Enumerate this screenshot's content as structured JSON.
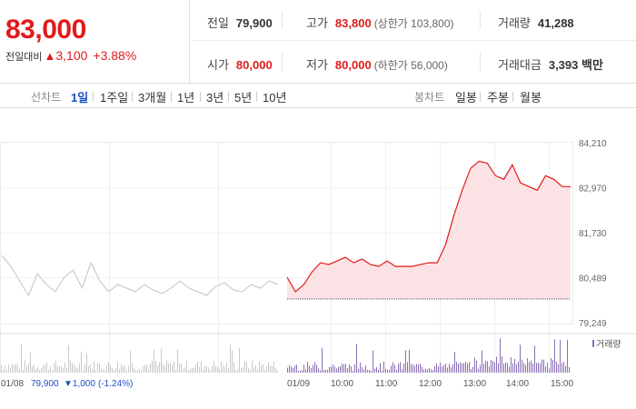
{
  "summary": {
    "price": "83,000",
    "change_label": "전일대비",
    "change_arrow": "▲",
    "change_value": "3,100",
    "change_pct": "+3.88%"
  },
  "stats": {
    "prev_close_label": "전일",
    "prev_close": "79,900",
    "high_label": "고가",
    "high": "83,800",
    "upper_limit": "(상한가 103,800)",
    "volume_label": "거래량",
    "volume": "41,288",
    "open_label": "시가",
    "open": "80,000",
    "low_label": "저가",
    "low": "80,000",
    "lower_limit": "(하한가 56,000)",
    "amount_label": "거래대금",
    "amount": "3,393 백만"
  },
  "line_tabs": {
    "label": "선차트",
    "items": [
      "1일",
      "1주일",
      "3개월",
      "1년",
      "3년",
      "5년",
      "10년"
    ],
    "active": 0
  },
  "candle_tabs": {
    "label": "봉차트",
    "items": [
      "일봉",
      "주봉",
      "월봉"
    ]
  },
  "colors": {
    "up": "#e01b1b",
    "down": "#1a4fc4",
    "volume_bar": "#8b6fb5",
    "prev_line": "#c3c3c3",
    "fill": "#fbe3e5"
  },
  "chart_data": {
    "type": "line",
    "y_ticks": [
      "84,210",
      "82,970",
      "81,730",
      "80,489",
      "79,249"
    ],
    "ylim": [
      79249,
      84210
    ],
    "baseline": 79900,
    "x_ticks": [
      "01/09",
      "10:00",
      "11:00",
      "12:00",
      "13:00",
      "14:00",
      "15:00"
    ],
    "prev_day_summary": {
      "date": "01/08",
      "close": "79,900",
      "change": "▼1,000",
      "pct": "(-1.24%)"
    },
    "volume_legend": "거래량",
    "today_series": {
      "times": [
        "09:00",
        "09:05",
        "09:10",
        "09:20",
        "09:30",
        "09:45",
        "10:00",
        "10:15",
        "10:30",
        "10:45",
        "11:00",
        "11:15",
        "11:30",
        "11:45",
        "12:00",
        "12:15",
        "12:30",
        "12:45",
        "13:00",
        "13:05",
        "13:10",
        "13:15",
        "13:20",
        "13:30",
        "13:40",
        "13:50",
        "14:00",
        "14:10",
        "14:20",
        "14:30",
        "14:40",
        "14:50",
        "15:00",
        "15:10",
        "15:20"
      ],
      "values": [
        80500,
        80100,
        80300,
        80650,
        80900,
        80850,
        80950,
        81050,
        80900,
        81000,
        80850,
        80800,
        80950,
        80800,
        80800,
        80800,
        80850,
        80900,
        80900,
        81400,
        82200,
        82900,
        83500,
        83700,
        83650,
        83300,
        83200,
        83600,
        83100,
        83000,
        82900,
        83300,
        83200,
        83000,
        83000
      ]
    },
    "prev_day_series": {
      "values": [
        81100,
        80800,
        80400,
        80000,
        80600,
        80300,
        80100,
        80500,
        80700,
        80200,
        80900,
        80400,
        80100,
        80300,
        80200,
        80100,
        80300,
        80150,
        80050,
        80200,
        80400,
        80200,
        80100,
        80000,
        80250,
        80350,
        80150,
        80100,
        80300,
        80200,
        80400,
        80300
      ]
    }
  }
}
